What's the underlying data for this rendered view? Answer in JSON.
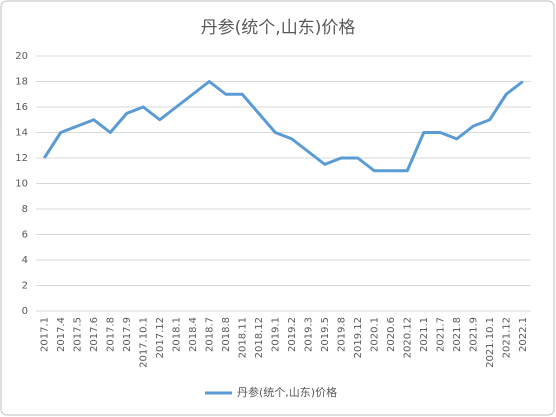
{
  "chart_data": {
    "type": "line",
    "title": "丹参(统个,山东)价格",
    "categories": [
      "2017.1",
      "2017.4",
      "2017.5",
      "2017.6",
      "2017.8",
      "2017.9",
      "2017.10.1",
      "2017.12",
      "2018.1",
      "2018.4",
      "2018.7",
      "2018.8",
      "2018.11",
      "2018.12",
      "2019.1",
      "2019.2",
      "2019.3",
      "2019.5",
      "2019.8",
      "2019.12",
      "2020.1",
      "2020.6",
      "2020.12",
      "2021.1",
      "2021.7",
      "2021.8",
      "2021.9",
      "2021.10.1",
      "2021.12",
      "2022.1"
    ],
    "series": [
      {
        "name": "丹参(统个,山东)价格",
        "color": "#5b9bd5",
        "values": [
          12,
          14,
          14.5,
          15,
          14,
          15.5,
          16,
          15,
          16,
          17,
          18,
          17,
          17,
          15.5,
          14,
          13.5,
          12.5,
          11.5,
          12,
          12,
          11,
          11,
          11,
          14,
          14,
          13.5,
          14.5,
          15,
          17,
          18
        ]
      }
    ],
    "ylim": [
      0,
      20
    ],
    "yticks": [
      0,
      2,
      4,
      6,
      8,
      10,
      12,
      14,
      16,
      18,
      20
    ],
    "grid": true,
    "legend": "bottom"
  }
}
